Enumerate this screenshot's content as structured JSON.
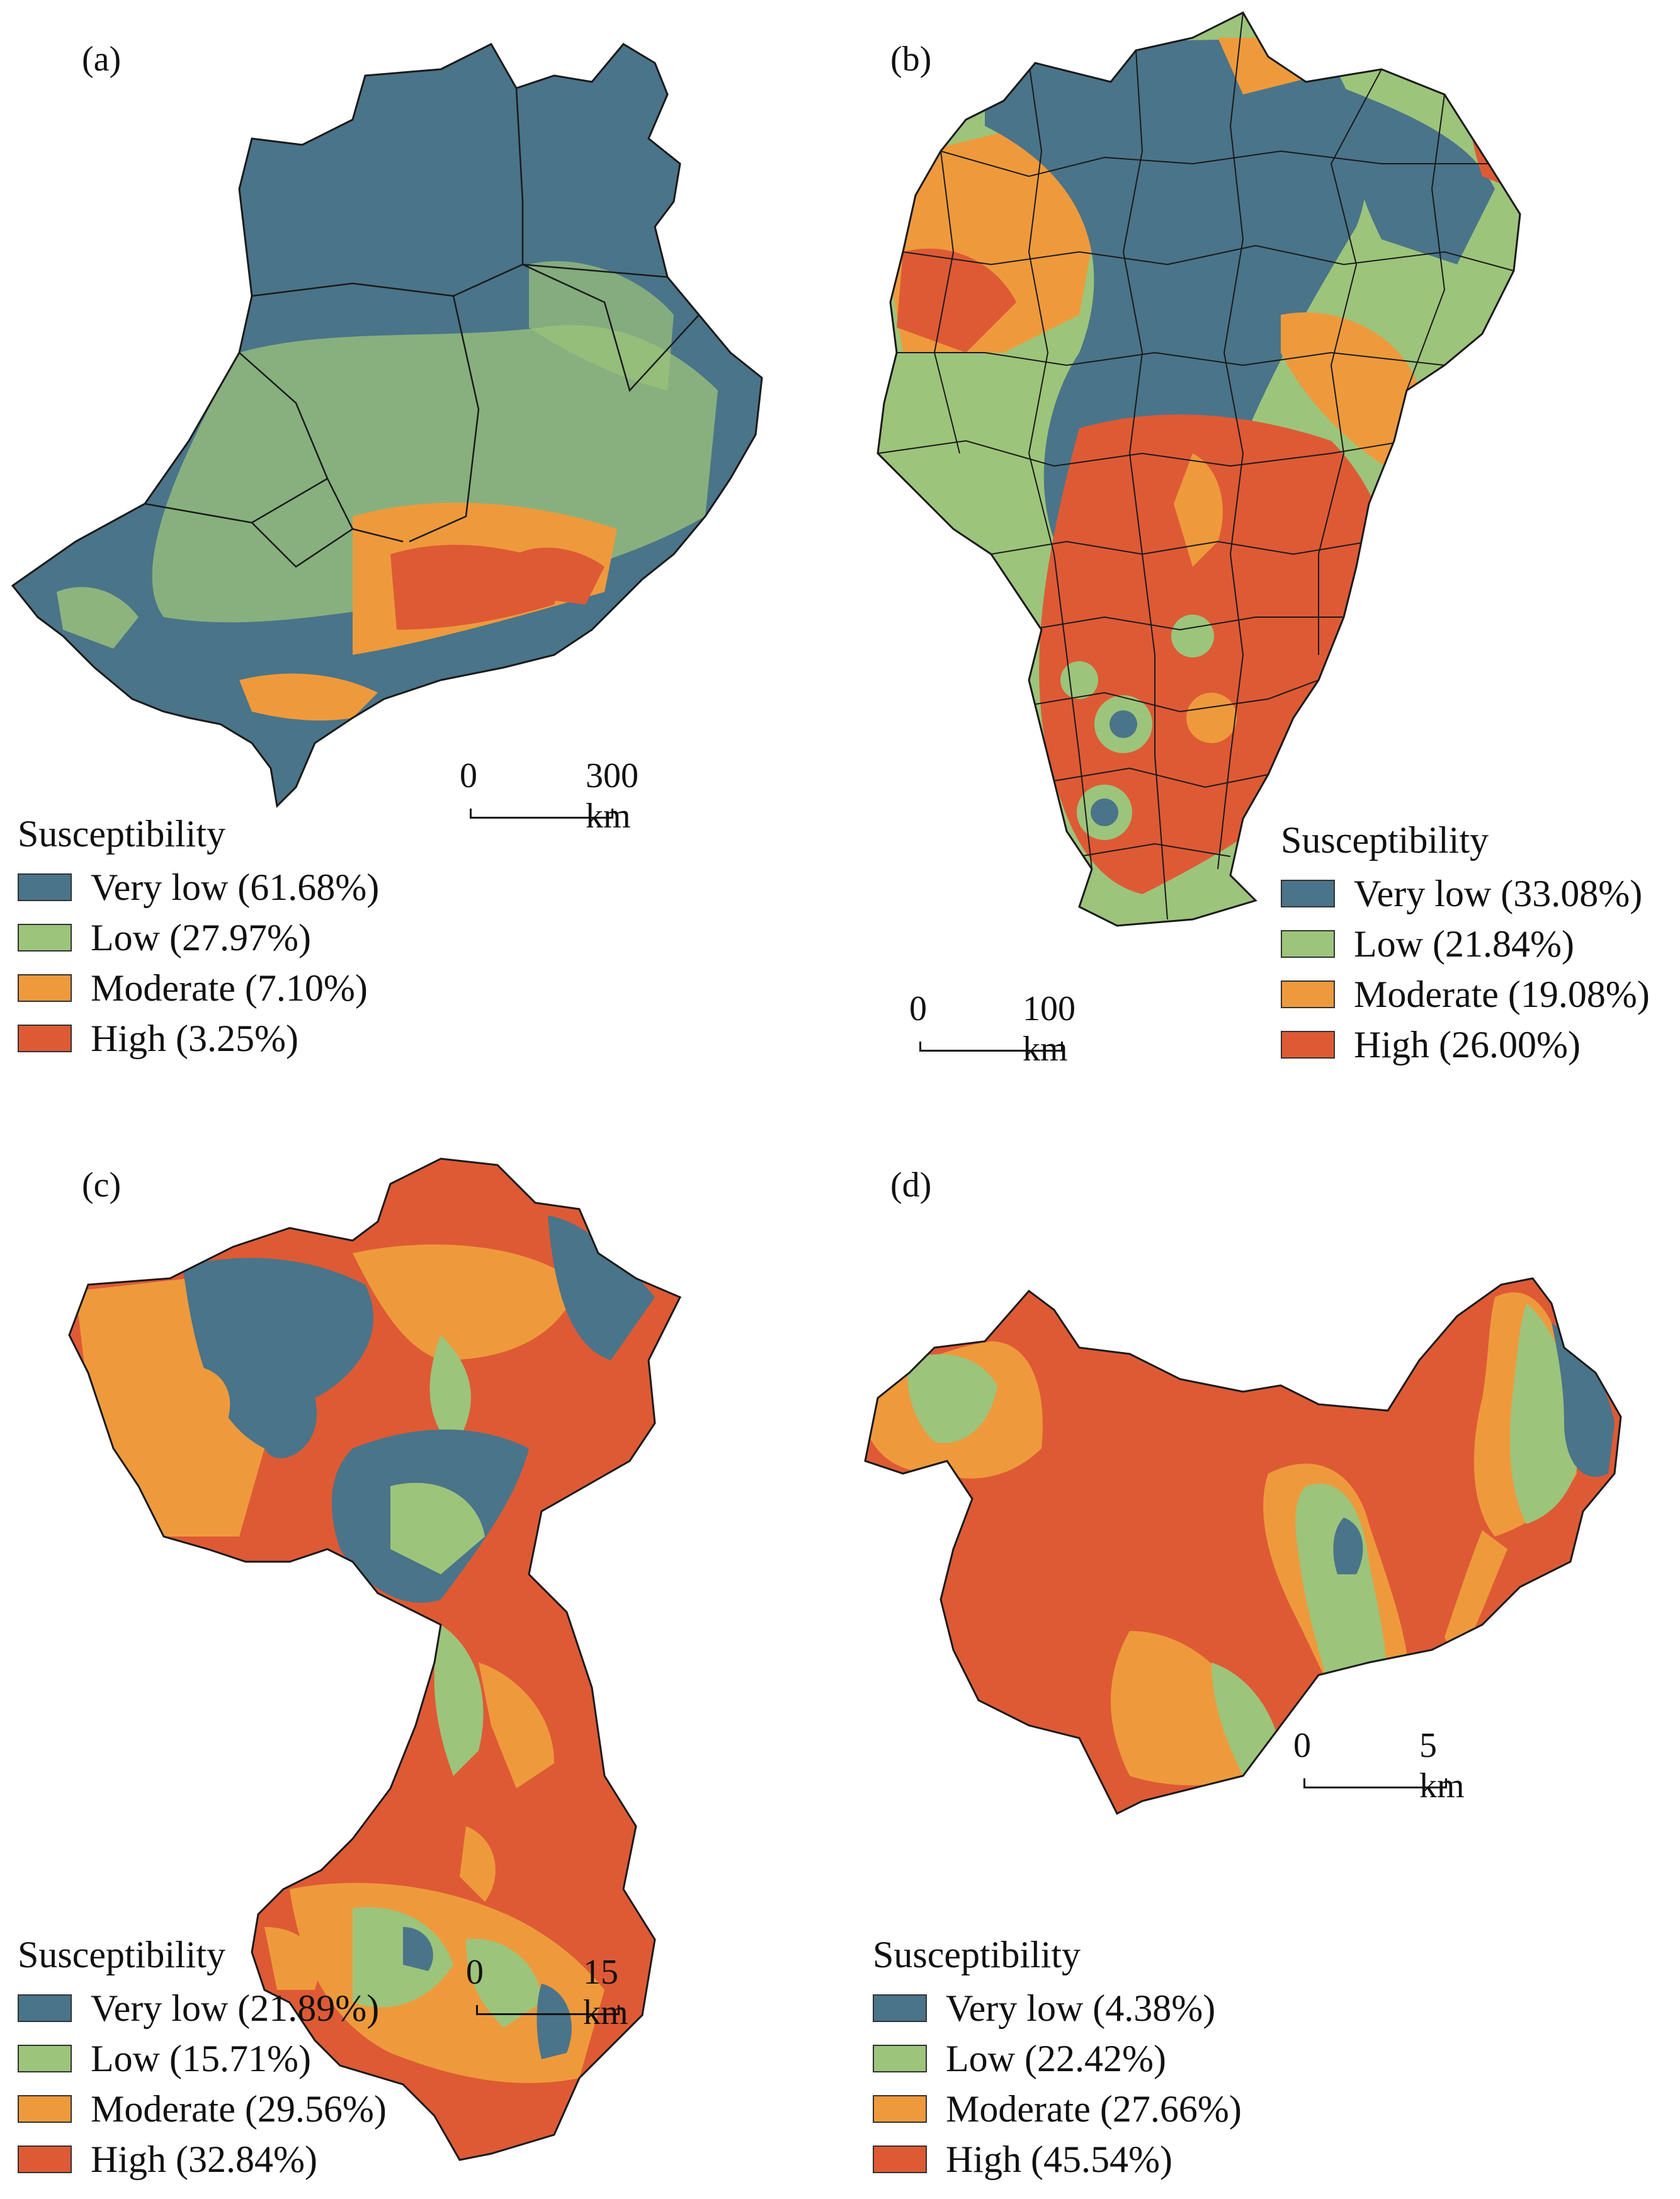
{
  "colors": {
    "very_low": "#4a7489",
    "low": "#9dc47b",
    "moderate": "#ee9a3c",
    "high": "#de5a35",
    "boundary": "#1a1a1a"
  },
  "panels": {
    "a": {
      "label": "(a)",
      "legend_title": "Susceptibility",
      "legend": [
        "Very low (61.68%)",
        "Low (27.97%)",
        "Moderate (7.10%)",
        "High (3.25%)"
      ],
      "shares": [
        61.68,
        27.97,
        7.1,
        3.25
      ],
      "scale": {
        "start": "0",
        "end": "300 km"
      }
    },
    "b": {
      "label": "(b)",
      "legend_title": "Susceptibility",
      "legend": [
        "Very low (33.08%)",
        "Low (21.84%)",
        "Moderate (19.08%)",
        "High (26.00%)"
      ],
      "shares": [
        33.08,
        21.84,
        19.08,
        26.0
      ],
      "scale": {
        "start": "0",
        "end": "100 km"
      }
    },
    "c": {
      "label": "(c)",
      "legend_title": "Susceptibility",
      "legend": [
        "Very low (21.89%)",
        "Low (15.71%)",
        "Moderate (29.56%)",
        "High (32.84%)"
      ],
      "shares": [
        21.89,
        15.71,
        29.56,
        32.84
      ],
      "scale": {
        "start": "0",
        "end": "15 km"
      }
    },
    "d": {
      "label": "(d)",
      "legend_title": "Susceptibility",
      "legend": [
        "Very low (4.38%)",
        "Low (22.42%)",
        "Moderate (27.66%)",
        "High (45.54%)"
      ],
      "shares": [
        4.38,
        22.42,
        27.66,
        45.54
      ],
      "scale": {
        "start": "0",
        "end": "5 km"
      }
    }
  }
}
